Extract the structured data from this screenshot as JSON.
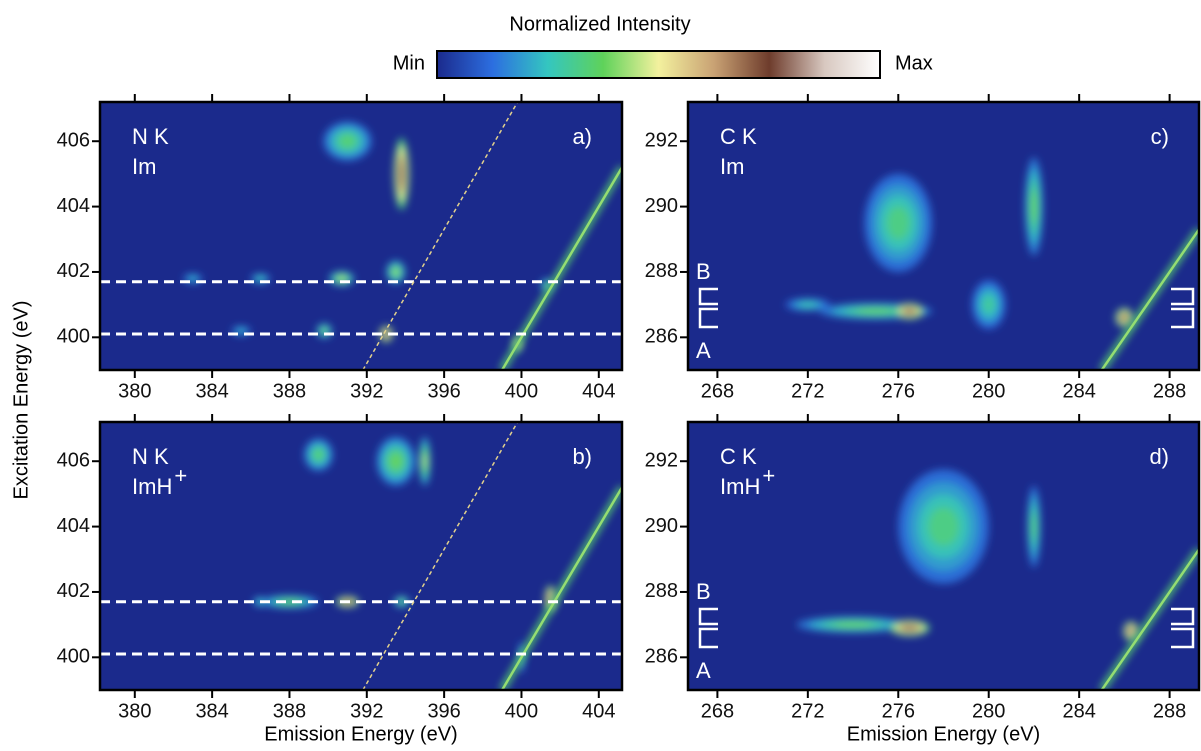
{
  "colorbar": {
    "title": "Normalized Intensity",
    "min_label": "Min",
    "max_label": "Max",
    "colors": [
      "#1b2a8c",
      "#2c6ee0",
      "#34c6c0",
      "#5fd25a",
      "#f3f19e",
      "#c9a274",
      "#6e3c2c",
      "#d8c8c0",
      "#ffffff"
    ]
  },
  "ylabel": "Excitation Energy (eV)",
  "chart_data": [
    {
      "type": "heatmap",
      "label": "N K",
      "sample": "Im",
      "tag": "a)",
      "xlim": [
        378.2,
        405.2
      ],
      "ylim": [
        399,
        407.2
      ],
      "xticks": [
        380,
        384,
        388,
        392,
        396,
        400,
        404
      ],
      "yticks": [
        400,
        402,
        404,
        406
      ],
      "hlines": [
        401.7,
        400.1
      ],
      "guide": {
        "x": [
          391.8,
          399.8
        ],
        "y": [
          399,
          407.2
        ]
      },
      "spots": [
        {
          "x": 391,
          "y": 406,
          "w": 2.5,
          "h": 1.2,
          "level": 0.35
        },
        {
          "x": 393.8,
          "y": 405,
          "w": 0.8,
          "h": 2.2,
          "level": 0.8
        },
        {
          "x": 393.5,
          "y": 402,
          "w": 1,
          "h": 0.7,
          "level": 0.42
        },
        {
          "x": 390.7,
          "y": 401.8,
          "w": 1.3,
          "h": 0.45,
          "level": 0.45
        },
        {
          "x": 386.5,
          "y": 401.8,
          "w": 1,
          "h": 0.3,
          "level": 0.3
        },
        {
          "x": 383,
          "y": 401.8,
          "w": 1,
          "h": 0.3,
          "level": 0.25
        },
        {
          "x": 389.8,
          "y": 400.2,
          "w": 0.8,
          "h": 0.45,
          "level": 0.4
        },
        {
          "x": 385.5,
          "y": 400.2,
          "w": 1,
          "h": 0.3,
          "level": 0.25
        },
        {
          "x": 393,
          "y": 400.1,
          "w": 0.7,
          "h": 0.5,
          "level": 0.85
        },
        {
          "x": 399.8,
          "y": 399.8,
          "w": 0.5,
          "h": 0.5,
          "level": 0.7
        },
        {
          "x": 401.3,
          "y": 401.6,
          "w": 0.6,
          "h": 0.4,
          "level": 0.35
        }
      ]
    },
    {
      "type": "heatmap",
      "label": "N K",
      "sample": "ImH",
      "sample_sup": "+",
      "tag": "b)",
      "xlabel": "Emission Energy (eV)",
      "xlim": [
        378.2,
        405.2
      ],
      "ylim": [
        399,
        407.2
      ],
      "xticks": [
        380,
        384,
        388,
        392,
        396,
        400,
        404
      ],
      "yticks": [
        400,
        402,
        404,
        406
      ],
      "hlines": [
        401.7,
        400.1
      ],
      "guide": {
        "x": [
          391.8,
          399.8
        ],
        "y": [
          399,
          407.2
        ]
      },
      "spots": [
        {
          "x": 388,
          "y": 401.7,
          "w": 3,
          "h": 0.4,
          "level": 0.38
        },
        {
          "x": 391,
          "y": 401.7,
          "w": 1.2,
          "h": 0.35,
          "level": 0.8
        },
        {
          "x": 393.8,
          "y": 401.7,
          "w": 0.8,
          "h": 0.35,
          "level": 0.4
        },
        {
          "x": 386.5,
          "y": 401.7,
          "w": 0.8,
          "h": 0.3,
          "level": 0.3
        },
        {
          "x": 393.5,
          "y": 406,
          "w": 2,
          "h": 1.5,
          "level": 0.38
        },
        {
          "x": 389.5,
          "y": 406.2,
          "w": 1.5,
          "h": 1,
          "level": 0.35
        },
        {
          "x": 395,
          "y": 406,
          "w": 0.6,
          "h": 1.5,
          "level": 0.45
        },
        {
          "x": 401.5,
          "y": 401.8,
          "w": 0.6,
          "h": 0.8,
          "level": 0.85
        },
        {
          "x": 400,
          "y": 400,
          "w": 0.3,
          "h": 1,
          "level": 0.3
        }
      ]
    },
    {
      "type": "heatmap",
      "label": "C K",
      "sample": "Im",
      "tag": "c)",
      "markers": [
        "B",
        "A"
      ],
      "xlim": [
        266.7,
        289.3
      ],
      "ylim": [
        285,
        293.2
      ],
      "xticks": [
        268,
        272,
        276,
        280,
        284,
        288
      ],
      "yticks": [
        286,
        288,
        290,
        292
      ],
      "spots": [
        {
          "x": 276,
          "y": 289.5,
          "w": 3,
          "h": 3,
          "level": 0.33
        },
        {
          "x": 275,
          "y": 286.8,
          "w": 5,
          "h": 0.5,
          "level": 0.38
        },
        {
          "x": 276.5,
          "y": 286.8,
          "w": 1.3,
          "h": 0.5,
          "level": 0.8
        },
        {
          "x": 282,
          "y": 290,
          "w": 0.8,
          "h": 3,
          "level": 0.38
        },
        {
          "x": 280,
          "y": 287,
          "w": 1.5,
          "h": 1.5,
          "level": 0.3
        },
        {
          "x": 272,
          "y": 287,
          "w": 2,
          "h": 0.4,
          "level": 0.28
        },
        {
          "x": 286,
          "y": 286.6,
          "w": 0.8,
          "h": 0.6,
          "level": 0.8
        }
      ]
    },
    {
      "type": "heatmap",
      "label": "C K",
      "sample": "ImH",
      "sample_sup": "+",
      "tag": "d)",
      "xlabel": "Emission Energy (eV)",
      "markers": [
        "B",
        "A"
      ],
      "xlim": [
        266.7,
        289.3
      ],
      "ylim": [
        285,
        293.2
      ],
      "xticks": [
        268,
        272,
        276,
        280,
        284,
        288
      ],
      "yticks": [
        286,
        288,
        290,
        292
      ],
      "spots": [
        {
          "x": 278,
          "y": 290,
          "w": 4,
          "h": 3.5,
          "level": 0.33
        },
        {
          "x": 274,
          "y": 287,
          "w": 5,
          "h": 0.5,
          "level": 0.38
        },
        {
          "x": 276.5,
          "y": 286.9,
          "w": 1.8,
          "h": 0.5,
          "level": 0.8
        },
        {
          "x": 282,
          "y": 290,
          "w": 0.6,
          "h": 2.5,
          "level": 0.35
        },
        {
          "x": 286.3,
          "y": 286.8,
          "w": 0.7,
          "h": 0.6,
          "level": 0.85
        }
      ]
    }
  ]
}
